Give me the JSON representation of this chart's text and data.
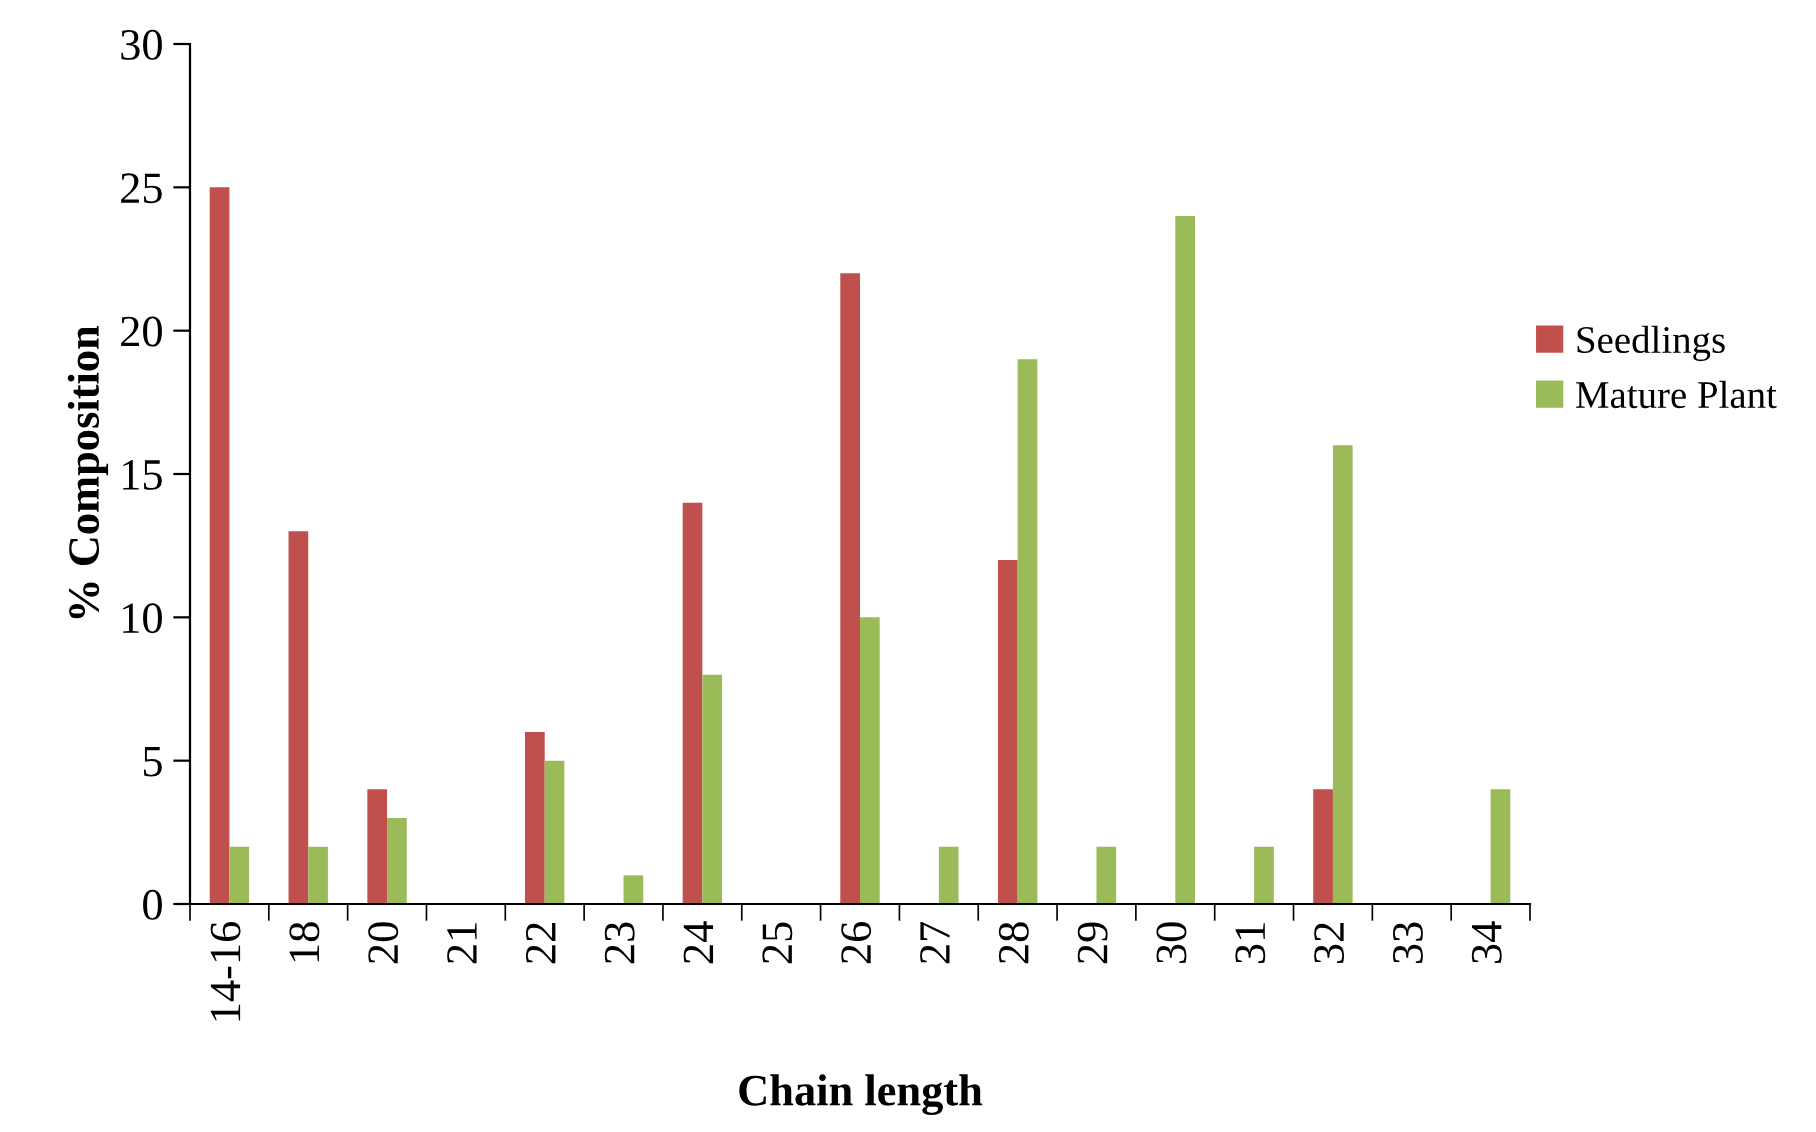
{
  "chart_data": {
    "type": "bar",
    "xlabel": "Chain length",
    "ylabel": "% Composition",
    "categories": [
      "14-16",
      "18",
      "20",
      "21",
      "22",
      "23",
      "24",
      "25",
      "26",
      "27",
      "28",
      "29",
      "30",
      "31",
      "32",
      "33",
      "34"
    ],
    "series": [
      {
        "name": "Seedlings",
        "color": "#c0504d",
        "values": [
          25,
          13,
          4,
          0,
          6,
          0,
          14,
          0,
          22,
          0,
          12,
          0,
          0,
          0,
          4,
          0,
          0
        ]
      },
      {
        "name": "Mature Plant",
        "color": "#9bbb59",
        "values": [
          2,
          2,
          3,
          0,
          5,
          1,
          8,
          0,
          10,
          2,
          19,
          2,
          24,
          2,
          16,
          0,
          4
        ]
      }
    ],
    "ylim": [
      0,
      30
    ],
    "yticks": [
      0,
      5,
      10,
      15,
      20,
      25,
      30
    ],
    "grid": false,
    "legend": "right"
  }
}
